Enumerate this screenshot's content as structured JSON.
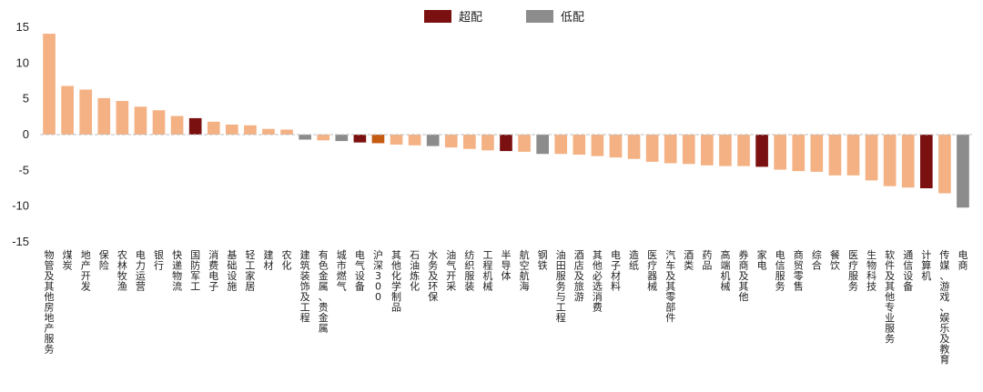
{
  "chart_data": {
    "type": "bar",
    "ylim": [
      -15,
      15
    ],
    "yticks": [
      15,
      10,
      5,
      0,
      -5,
      -10,
      -15
    ],
    "grid": false,
    "legend_position": "top-center",
    "legend": [
      {
        "label": "超配",
        "color": "#7B1010"
      },
      {
        "label": "低配",
        "color": "#8C8C8C"
      }
    ],
    "colors": {
      "default": "#F4B183",
      "overweight": "#7B1010",
      "underweight": "#8C8C8C",
      "benchmark": "#C55A11"
    },
    "categories": [
      "物管及其他房地产服务",
      "煤炭",
      "地产开发",
      "保险",
      "农林牧渔",
      "电力运营",
      "银行",
      "快递物流",
      "国防军工",
      "消费电子",
      "基础设施",
      "轻工家居",
      "建材",
      "农化",
      "建筑装饰及工程",
      "有色金属、贵金属",
      "城市燃气",
      "电气设备",
      "沪深300",
      "其他化学制品",
      "石油炼化",
      "水务及环保",
      "油气开采",
      "纺织服装",
      "工程机械",
      "半导体",
      "航空航海",
      "钢铁",
      "油田服务与工程",
      "酒店及旅游",
      "其他必选消费",
      "电子材料",
      "造纸",
      "医疗器械",
      "汽车及其零部件",
      "酒类",
      "药品",
      "高端机械",
      "券商及其他",
      "家电",
      "电信服务",
      "商贸零售",
      "综合",
      "餐饮",
      "医疗服务",
      "生物科技",
      "软件及其他专业服务",
      "通信设备",
      "计算机",
      "传媒、游戏、娱乐及教育",
      "电商"
    ],
    "values": [
      14.1,
      6.8,
      6.3,
      5.1,
      4.7,
      3.9,
      3.4,
      2.6,
      2.3,
      1.8,
      1.4,
      1.3,
      0.8,
      0.7,
      -0.7,
      -0.8,
      -0.9,
      -1.1,
      -1.2,
      -1.4,
      -1.5,
      -1.6,
      -1.8,
      -2.0,
      -2.2,
      -2.3,
      -2.4,
      -2.7,
      -2.7,
      -2.8,
      -3.0,
      -3.2,
      -3.4,
      -3.8,
      -4.0,
      -4.1,
      -4.3,
      -4.4,
      -4.4,
      -4.5,
      -4.9,
      -5.1,
      -5.2,
      -5.7,
      -5.7,
      -6.4,
      -7.2,
      -7.4,
      -7.5,
      -8.2,
      -10.2
    ],
    "categories_highlight": {
      "overweight": [
        "国防军工",
        "电气设备",
        "半导体",
        "家电",
        "计算机"
      ],
      "underweight": [
        "建筑装饰及工程",
        "城市燃气",
        "水务及环保",
        "钢铁",
        "电商"
      ],
      "benchmark": [
        "沪深300"
      ]
    }
  }
}
